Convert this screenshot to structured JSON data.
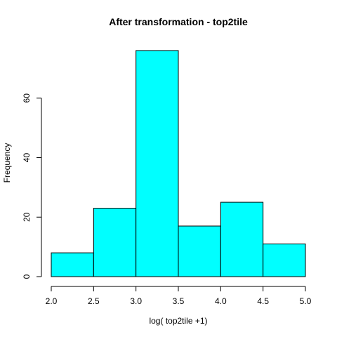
{
  "chart_data": {
    "type": "bar",
    "title": "After transformation -  top2tile",
    "xlabel": "log( top2tile +1)",
    "ylabel": "Frequency",
    "bins": [
      {
        "x0": 2.0,
        "x1": 2.5,
        "value": 8
      },
      {
        "x0": 2.5,
        "x1": 3.0,
        "value": 23
      },
      {
        "x0": 3.0,
        "x1": 3.5,
        "value": 76
      },
      {
        "x0": 3.5,
        "x1": 4.0,
        "value": 17
      },
      {
        "x0": 4.0,
        "x1": 4.5,
        "value": 25
      },
      {
        "x0": 4.5,
        "x1": 5.0,
        "value": 11
      }
    ],
    "xlim": [
      2.0,
      5.0
    ],
    "ylim": [
      0,
      76
    ],
    "xticks": [
      "2.0",
      "2.5",
      "3.0",
      "3.5",
      "4.0",
      "4.5",
      "5.0"
    ],
    "yticks": [
      "0",
      "20",
      "40",
      "60"
    ],
    "bar_color": "#00ffff",
    "grid": false
  }
}
